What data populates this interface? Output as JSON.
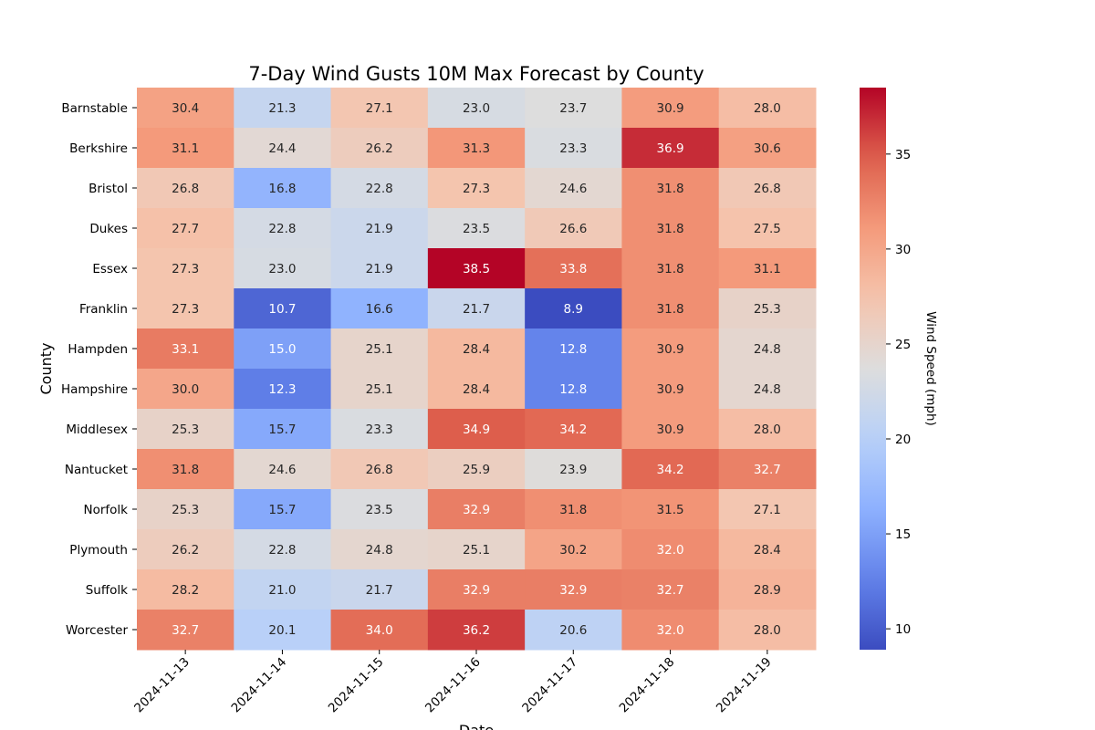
{
  "chart_data": {
    "type": "heatmap",
    "title": "7-Day Wind Gusts 10M Max Forecast by County",
    "xlabel": "Date",
    "ylabel": "County",
    "x": [
      "2024-11-13",
      "2024-11-14",
      "2024-11-15",
      "2024-11-16",
      "2024-11-17",
      "2024-11-18",
      "2024-11-19"
    ],
    "y": [
      "Barnstable",
      "Berkshire",
      "Bristol",
      "Dukes",
      "Essex",
      "Franklin",
      "Hampden",
      "Hampshire",
      "Middlesex",
      "Nantucket",
      "Norfolk",
      "Plymouth",
      "Suffolk",
      "Worcester"
    ],
    "values": [
      [
        30.4,
        21.3,
        27.1,
        23.0,
        23.7,
        30.9,
        28.0
      ],
      [
        31.1,
        24.4,
        26.2,
        31.3,
        23.3,
        36.9,
        30.6
      ],
      [
        26.8,
        16.8,
        22.8,
        27.3,
        24.6,
        31.8,
        26.8
      ],
      [
        27.7,
        22.8,
        21.9,
        23.5,
        26.6,
        31.8,
        27.5
      ],
      [
        27.3,
        23.0,
        21.9,
        38.5,
        33.8,
        31.8,
        31.1
      ],
      [
        27.3,
        10.7,
        16.6,
        21.7,
        8.9,
        31.8,
        25.3
      ],
      [
        33.1,
        15.0,
        25.1,
        28.4,
        12.8,
        30.9,
        24.8
      ],
      [
        30.0,
        12.3,
        25.1,
        28.4,
        12.8,
        30.9,
        24.8
      ],
      [
        25.3,
        15.7,
        23.3,
        34.9,
        34.2,
        30.9,
        28.0
      ],
      [
        31.8,
        24.6,
        26.8,
        25.9,
        23.9,
        34.2,
        32.7
      ],
      [
        25.3,
        15.7,
        23.5,
        32.9,
        31.8,
        31.5,
        27.1
      ],
      [
        26.2,
        22.8,
        24.8,
        25.1,
        30.2,
        32.0,
        28.4
      ],
      [
        28.2,
        21.0,
        21.7,
        32.9,
        32.9,
        32.7,
        28.9
      ],
      [
        32.7,
        20.1,
        34.0,
        36.2,
        20.6,
        32.0,
        28.0
      ]
    ],
    "colormap": "coolwarm",
    "vmin": 8.9,
    "vmax": 38.5,
    "colorbar": {
      "label": "Wind Speed (mph)",
      "ticks": [
        10,
        15,
        20,
        25,
        30,
        35
      ]
    }
  }
}
